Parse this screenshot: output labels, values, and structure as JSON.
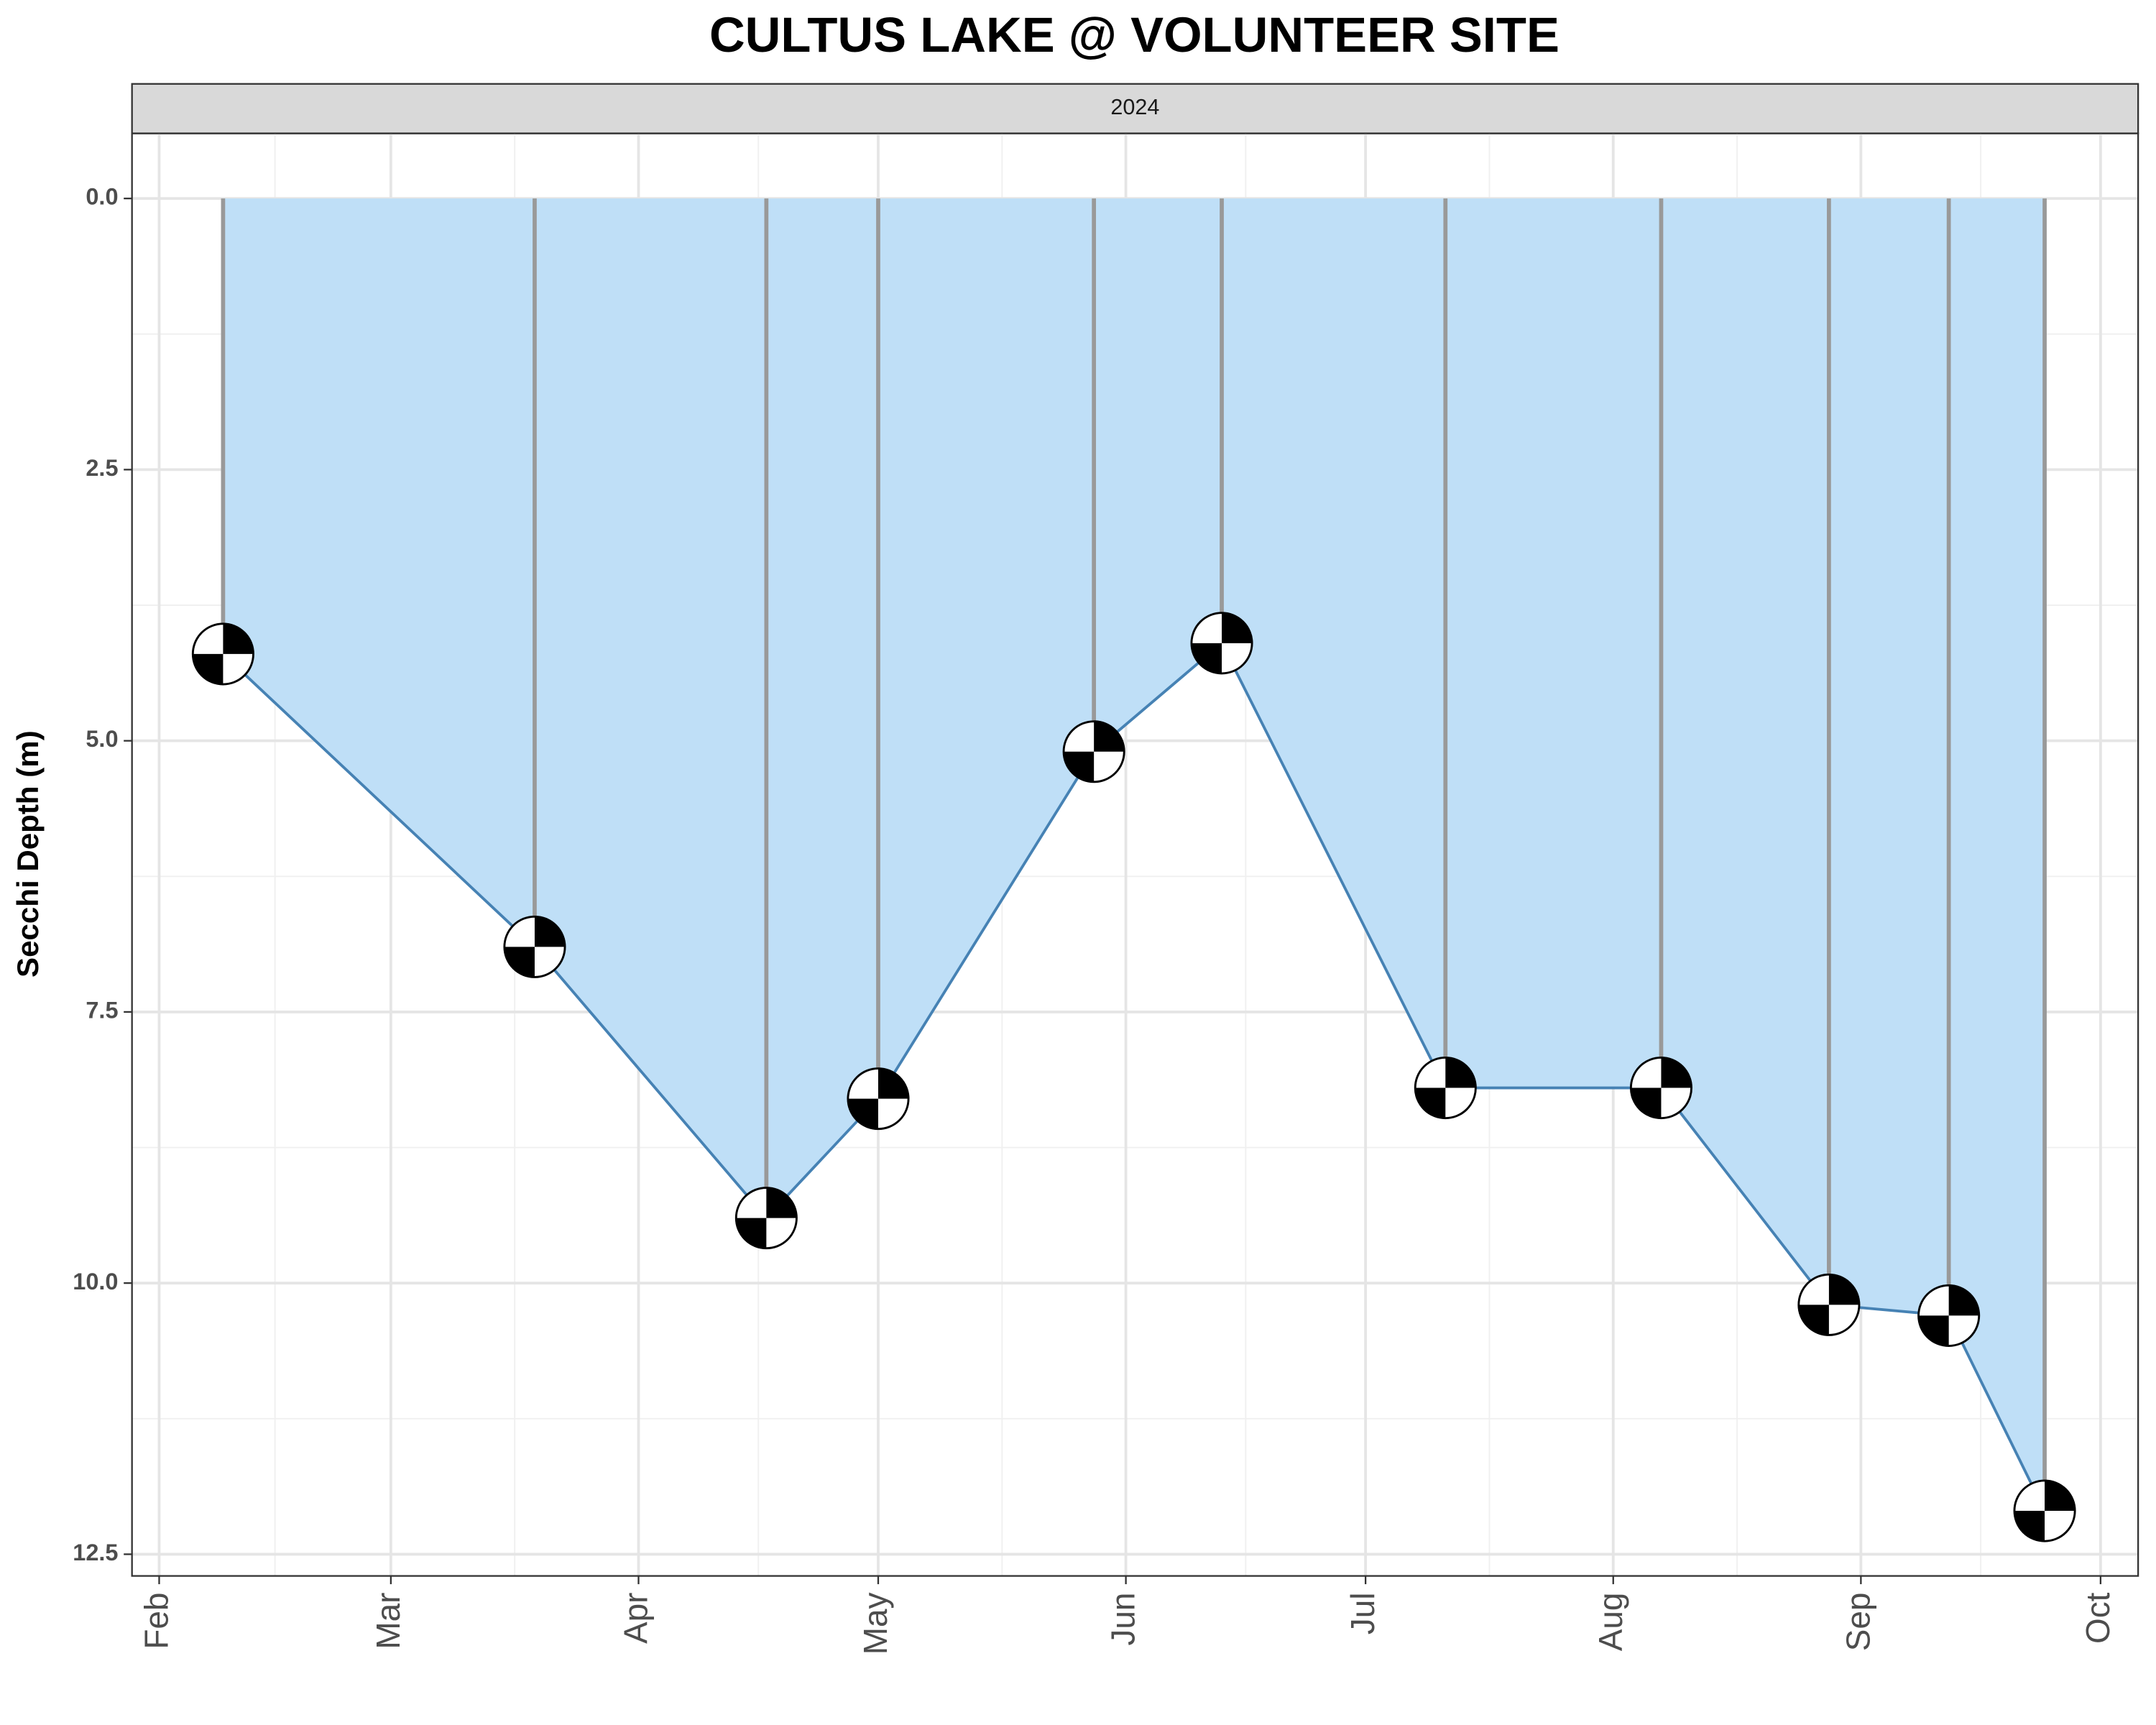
{
  "chart_data": {
    "type": "area",
    "title": "CULTUS LAKE @ VOLUNTEER SITE",
    "facet": "2024",
    "y_label": "Secchi Depth (m)",
    "x": [
      40,
      79,
      108,
      122,
      149,
      165,
      193,
      220,
      241,
      256,
      268
    ],
    "values": [
      4.2,
      6.9,
      9.4,
      8.3,
      5.1,
      4.1,
      8.2,
      8.2,
      10.2,
      10.3,
      12.1
    ],
    "color": "#4682b4",
    "fill": "#bfdff7",
    "drop_line_color": "#999999",
    "xlim": [
      28.6,
      279.7
    ],
    "xticks": [
      {
        "value": 32,
        "label": "Feb"
      },
      {
        "value": 61,
        "label": "Mar"
      },
      {
        "value": 92,
        "label": "Apr"
      },
      {
        "value": 122,
        "label": "May"
      },
      {
        "value": 153,
        "label": "Jun"
      },
      {
        "value": 183,
        "label": "Jul"
      },
      {
        "value": 214,
        "label": "Aug"
      },
      {
        "value": 245,
        "label": "Sep"
      },
      {
        "value": 275,
        "label": "Oct"
      }
    ],
    "ylim": [
      12.7,
      -0.6
    ],
    "yticks": [
      {
        "value": 0,
        "label": "0.0"
      },
      2.5,
      {
        "value": 5,
        "label": "5.0"
      },
      7.5,
      {
        "value": 10,
        "label": "10.0"
      },
      12.5
    ],
    "grid": true
  }
}
